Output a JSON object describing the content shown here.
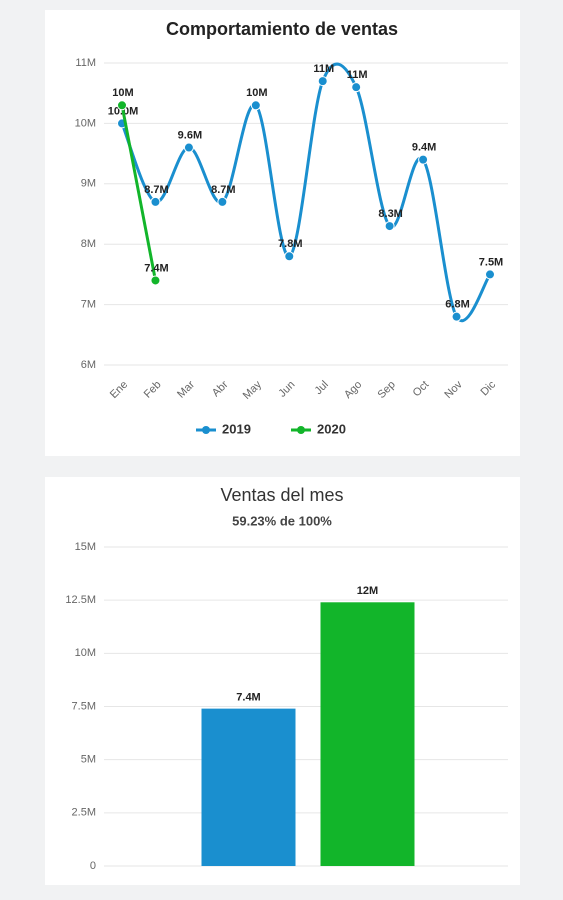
{
  "chart_data": [
    {
      "type": "line",
      "title": "Comportamiento de ventas",
      "categories": [
        "Ene",
        "Feb",
        "Mar",
        "Abr",
        "May",
        "Jun",
        "Jul",
        "Ago",
        "Sep",
        "Oct",
        "Nov",
        "Dic"
      ],
      "series": [
        {
          "name": "2019",
          "color": "#1a8fcf",
          "values": [
            10.0,
            8.7,
            9.6,
            8.7,
            10.3,
            7.8,
            10.7,
            10.6,
            8.3,
            9.4,
            6.8,
            7.5
          ],
          "value_labels": [
            "10.0M",
            "8.7M",
            "9.6M",
            "8.7M",
            "10M",
            "7.8M",
            "11M",
            "11M",
            "8.3M",
            "9.4M",
            "6.8M",
            "7.5M"
          ]
        },
        {
          "name": "2020",
          "color": "#12b52a",
          "values": [
            10.3,
            7.4,
            null,
            null,
            null,
            null,
            null,
            null,
            null,
            null,
            null,
            null
          ],
          "value_labels": [
            "10M",
            "7.4M",
            null,
            null,
            null,
            null,
            null,
            null,
            null,
            null,
            null,
            null
          ]
        }
      ],
      "ylim": [
        6,
        11
      ],
      "yticks": [
        {
          "value": 6,
          "label": "6M"
        },
        {
          "value": 7,
          "label": "7M"
        },
        {
          "value": 8,
          "label": "8M"
        },
        {
          "value": 9,
          "label": "9M"
        },
        {
          "value": 10,
          "label": "10M"
        },
        {
          "value": 11,
          "label": "11M"
        }
      ],
      "grid": true,
      "legend": "bottom"
    },
    {
      "type": "bar",
      "title": "Ventas del mes",
      "subtitle": "59.23% de 100%",
      "categories": [
        null,
        null
      ],
      "values": [
        7.4,
        12.4
      ],
      "value_labels": [
        "7.4M",
        "12M"
      ],
      "colors": [
        "#1a8fcf",
        "#12b52a"
      ],
      "ylim": [
        0,
        15
      ],
      "yticks": [
        0,
        {
          "value": 2.5,
          "label": "2.5M"
        },
        {
          "value": 5,
          "label": "5M"
        },
        {
          "value": 7.5,
          "label": "7.5M"
        },
        {
          "value": 10,
          "label": "10M"
        },
        {
          "value": 12.5,
          "label": "12.5M"
        },
        {
          "value": 15,
          "label": "15M"
        }
      ],
      "grid": true
    }
  ]
}
